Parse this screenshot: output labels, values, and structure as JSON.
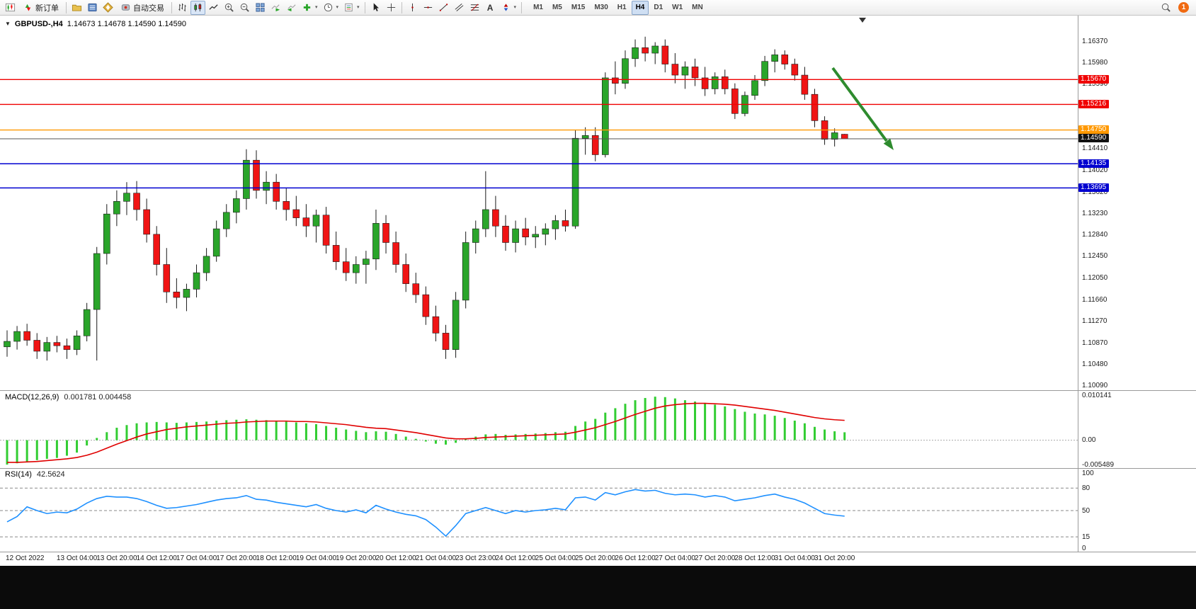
{
  "toolbar": {
    "new_order_label": "新订单",
    "autotrade_label": "自动交易",
    "timeframes": [
      "M1",
      "M5",
      "M15",
      "M30",
      "H1",
      "H4",
      "D1",
      "W1",
      "MN"
    ],
    "active_timeframe": "H4",
    "notification_count": "1"
  },
  "glyphs": {
    "collapse_triangle": "▼",
    "dropdown_caret": "▾",
    "text_tool": "A"
  },
  "colors": {
    "bull": "#2aa52a",
    "bear": "#f01414",
    "wick": "#1a1a1a",
    "macd_hist": "#32cd32",
    "macd_signal": "#e00000",
    "rsi": "#1e90ff",
    "arrow": "#2e8b2e",
    "bid_line": "#555555",
    "bid_tag": "#111111"
  },
  "chart_data": {
    "type": "candlestick",
    "symbol_title": "GBPUSD-,H4",
    "ohlc_display": "1.14673 1.14678 1.14590 1.14590",
    "price_axis_labels": [
      "1.16370",
      "1.15980",
      "1.15590",
      "1.14410",
      "1.14020",
      "1.13620",
      "1.13230",
      "1.12840",
      "1.12450",
      "1.12050",
      "1.11660",
      "1.11270",
      "1.10870",
      "1.10480",
      "1.10090"
    ],
    "hlines": [
      {
        "price": 1.1567,
        "label": "1.15670",
        "color": "#f00000"
      },
      {
        "price": 1.15216,
        "label": "1.15216",
        "color": "#f00000"
      },
      {
        "price": 1.1475,
        "label": "1.14750",
        "color": "#ff9800"
      },
      {
        "price": 1.1459,
        "label": "1.14590",
        "color": "#555555",
        "tag_color": "#111111",
        "is_bid": true
      },
      {
        "price": 1.14135,
        "label": "1.14135",
        "color": "#0000d0"
      },
      {
        "price": 1.13695,
        "label": "1.13695",
        "color": "#0000d0"
      }
    ],
    "candles": [
      [
        1.108,
        1.111,
        1.1062,
        1.109
      ],
      [
        1.109,
        1.1118,
        1.1075,
        1.1108
      ],
      [
        1.1108,
        1.1122,
        1.1082,
        1.1092
      ],
      [
        1.1092,
        1.1105,
        1.1058,
        1.1072
      ],
      [
        1.1072,
        1.1098,
        1.1055,
        1.1088
      ],
      [
        1.1088,
        1.11,
        1.107,
        1.1082
      ],
      [
        1.1082,
        1.1095,
        1.1058,
        1.1075
      ],
      [
        1.1075,
        1.111,
        1.1065,
        1.11
      ],
      [
        1.11,
        1.116,
        1.109,
        1.1148
      ],
      [
        1.1148,
        1.1262,
        1.1055,
        1.125
      ],
      [
        1.125,
        1.134,
        1.123,
        1.1322
      ],
      [
        1.1322,
        1.1365,
        1.13,
        1.1345
      ],
      [
        1.1345,
        1.138,
        1.132,
        1.136
      ],
      [
        1.136,
        1.1382,
        1.131,
        1.133
      ],
      [
        1.133,
        1.135,
        1.127,
        1.1285
      ],
      [
        1.1285,
        1.13,
        1.121,
        1.123
      ],
      [
        1.123,
        1.126,
        1.116,
        1.118
      ],
      [
        1.118,
        1.1205,
        1.115,
        1.117
      ],
      [
        1.117,
        1.1195,
        1.1145,
        1.1185
      ],
      [
        1.1185,
        1.123,
        1.117,
        1.1215
      ],
      [
        1.1215,
        1.126,
        1.12,
        1.1245
      ],
      [
        1.1245,
        1.131,
        1.1235,
        1.1295
      ],
      [
        1.1295,
        1.134,
        1.128,
        1.1325
      ],
      [
        1.1325,
        1.1365,
        1.1305,
        1.135
      ],
      [
        1.135,
        1.144,
        1.133,
        1.142
      ],
      [
        1.142,
        1.1438,
        1.135,
        1.1365
      ],
      [
        1.1365,
        1.14,
        1.134,
        1.138
      ],
      [
        1.138,
        1.1395,
        1.133,
        1.1345
      ],
      [
        1.1345,
        1.137,
        1.131,
        1.133
      ],
      [
        1.133,
        1.1355,
        1.13,
        1.1315
      ],
      [
        1.1315,
        1.134,
        1.128,
        1.13
      ],
      [
        1.13,
        1.133,
        1.127,
        1.132
      ],
      [
        1.132,
        1.1335,
        1.125,
        1.1265
      ],
      [
        1.1265,
        1.129,
        1.122,
        1.1235
      ],
      [
        1.1235,
        1.126,
        1.12,
        1.1215
      ],
      [
        1.1215,
        1.1245,
        1.1195,
        1.123
      ],
      [
        1.123,
        1.1255,
        1.1195,
        1.124
      ],
      [
        1.124,
        1.133,
        1.122,
        1.1305
      ],
      [
        1.1305,
        1.132,
        1.125,
        1.127
      ],
      [
        1.127,
        1.129,
        1.1215,
        1.123
      ],
      [
        1.123,
        1.125,
        1.118,
        1.1195
      ],
      [
        1.1195,
        1.1215,
        1.116,
        1.1175
      ],
      [
        1.1175,
        1.119,
        1.112,
        1.1135
      ],
      [
        1.1135,
        1.1155,
        1.109,
        1.1105
      ],
      [
        1.1105,
        1.112,
        1.1058,
        1.1075
      ],
      [
        1.1075,
        1.118,
        1.106,
        1.1165
      ],
      [
        1.1165,
        1.129,
        1.115,
        1.127
      ],
      [
        1.127,
        1.131,
        1.125,
        1.1295
      ],
      [
        1.1295,
        1.14,
        1.128,
        1.133
      ],
      [
        1.133,
        1.1355,
        1.128,
        1.13
      ],
      [
        1.13,
        1.132,
        1.1255,
        1.127
      ],
      [
        1.127,
        1.131,
        1.1252,
        1.1295
      ],
      [
        1.1295,
        1.1315,
        1.1265,
        1.128
      ],
      [
        1.128,
        1.13,
        1.126,
        1.1285
      ],
      [
        1.1285,
        1.1305,
        1.1265,
        1.1295
      ],
      [
        1.1295,
        1.132,
        1.1275,
        1.131
      ],
      [
        1.131,
        1.133,
        1.129,
        1.13
      ],
      [
        1.13,
        1.1475,
        1.1295,
        1.146
      ],
      [
        1.146,
        1.148,
        1.143,
        1.1465
      ],
      [
        1.1465,
        1.148,
        1.1418,
        1.143
      ],
      [
        1.143,
        1.158,
        1.1425,
        1.157
      ],
      [
        1.157,
        1.16,
        1.154,
        1.156
      ],
      [
        1.156,
        1.162,
        1.155,
        1.1605
      ],
      [
        1.1605,
        1.164,
        1.159,
        1.1625
      ],
      [
        1.1625,
        1.1645,
        1.16,
        1.1615
      ],
      [
        1.1615,
        1.1635,
        1.1595,
        1.1628
      ],
      [
        1.1628,
        1.164,
        1.158,
        1.1595
      ],
      [
        1.1595,
        1.1615,
        1.156,
        1.1575
      ],
      [
        1.1575,
        1.16,
        1.155,
        1.159
      ],
      [
        1.159,
        1.1605,
        1.1555,
        1.157
      ],
      [
        1.157,
        1.159,
        1.1537,
        1.155
      ],
      [
        1.155,
        1.158,
        1.154,
        1.1572
      ],
      [
        1.1572,
        1.1585,
        1.154,
        1.155
      ],
      [
        1.155,
        1.156,
        1.1495,
        1.1505
      ],
      [
        1.1505,
        1.1545,
        1.15,
        1.1538
      ],
      [
        1.1538,
        1.1575,
        1.153,
        1.1565
      ],
      [
        1.1565,
        1.161,
        1.1555,
        1.16
      ],
      [
        1.16,
        1.1622,
        1.158,
        1.1612
      ],
      [
        1.1612,
        1.162,
        1.1585,
        1.1595
      ],
      [
        1.1595,
        1.1605,
        1.1565,
        1.1575
      ],
      [
        1.1575,
        1.159,
        1.153,
        1.154
      ],
      [
        1.154,
        1.155,
        1.148,
        1.1492
      ],
      [
        1.1492,
        1.15,
        1.1448,
        1.1458
      ],
      [
        1.1458,
        1.1478,
        1.1445,
        1.147
      ],
      [
        1.14673,
        1.14678,
        1.1459,
        1.1459
      ]
    ],
    "macd": {
      "label": "MACD(12,26,9)",
      "values_display": "0.001781 0.004458",
      "axis_labels": [
        "0.010141",
        "0.00",
        "-0.005489"
      ],
      "scale_max": 0.010141,
      "scale_min": -0.005489,
      "histogram": [
        -0.0055,
        -0.0052,
        -0.0048,
        -0.0045,
        -0.0042,
        -0.004,
        -0.0035,
        -0.0028,
        -0.0012,
        0.0005,
        0.0018,
        0.0028,
        0.0034,
        0.0038,
        0.004,
        0.0041,
        0.004,
        0.0039,
        0.004,
        0.0041,
        0.0042,
        0.0044,
        0.0045,
        0.0046,
        0.0047,
        0.0046,
        0.0045,
        0.0044,
        0.0042,
        0.004,
        0.0038,
        0.0036,
        0.0032,
        0.0028,
        0.0024,
        0.0021,
        0.0018,
        0.002,
        0.0019,
        0.0014,
        0.0008,
        0.0003,
        -0.0003,
        -0.0008,
        -0.001,
        -0.0006,
        0.0002,
        0.0008,
        0.0013,
        0.0014,
        0.0012,
        0.0013,
        0.0014,
        0.0015,
        0.0016,
        0.0018,
        0.0019,
        0.0032,
        0.0042,
        0.0048,
        0.0062,
        0.0072,
        0.0082,
        0.009,
        0.0095,
        0.0098,
        0.0097,
        0.0094,
        0.009,
        0.0087,
        0.0084,
        0.008,
        0.0076,
        0.007,
        0.0064,
        0.006,
        0.0058,
        0.0055,
        0.005,
        0.0044,
        0.0038,
        0.003,
        0.0024,
        0.002,
        0.001781
      ],
      "signal": [
        -0.005,
        -0.005,
        -0.0049,
        -0.0048,
        -0.0046,
        -0.0044,
        -0.0042,
        -0.0039,
        -0.0034,
        -0.0027,
        -0.0018,
        -0.0009,
        -0.0001,
        0.0007,
        0.0014,
        0.0019,
        0.0024,
        0.0027,
        0.003,
        0.0032,
        0.0034,
        0.0036,
        0.0038,
        0.0039,
        0.0041,
        0.0042,
        0.0043,
        0.0043,
        0.0043,
        0.0042,
        0.0042,
        0.0041,
        0.0039,
        0.0037,
        0.0035,
        0.0032,
        0.0029,
        0.0027,
        0.0026,
        0.0023,
        0.002,
        0.0017,
        0.0013,
        0.0009,
        0.0005,
        0.0003,
        0.0003,
        0.0004,
        0.0006,
        0.0007,
        0.0008,
        0.0009,
        0.001,
        0.0011,
        0.0012,
        0.0013,
        0.0014,
        0.0018,
        0.0023,
        0.0028,
        0.0035,
        0.0042,
        0.005,
        0.0058,
        0.0065,
        0.0072,
        0.0077,
        0.008,
        0.0082,
        0.0083,
        0.0083,
        0.0082,
        0.0081,
        0.0079,
        0.0076,
        0.0073,
        0.007,
        0.0067,
        0.0063,
        0.0059,
        0.0055,
        0.0051,
        0.0048,
        0.0046,
        0.004458
      ]
    },
    "rsi": {
      "label": "RSI(14)",
      "value_display": "42.5624",
      "axis_labels": [
        "100",
        "80",
        "50",
        "15",
        "0"
      ],
      "levels": [
        80,
        50,
        15
      ],
      "values": [
        35,
        42,
        55,
        50,
        46,
        48,
        47,
        52,
        60,
        66,
        69,
        68,
        68,
        66,
        62,
        57,
        53,
        54,
        56,
        58,
        61,
        64,
        66,
        67,
        70,
        65,
        64,
        61,
        59,
        57,
        55,
        58,
        53,
        50,
        48,
        51,
        47,
        57,
        52,
        48,
        45,
        43,
        38,
        28,
        16,
        30,
        46,
        50,
        54,
        50,
        46,
        50,
        48,
        50,
        51,
        53,
        51,
        67,
        68,
        64,
        74,
        71,
        75,
        78,
        76,
        77,
        73,
        71,
        72,
        71,
        68,
        70,
        68,
        63,
        65,
        67,
        70,
        72,
        68,
        65,
        60,
        53,
        46,
        44,
        42.56
      ]
    },
    "time_labels": [
      "12 Oct 2022",
      "13 Oct 04:00",
      "13 Oct 20:00",
      "14 Oct 12:00",
      "17 Oct 04:00",
      "17 Oct 20:00",
      "18 Oct 12:00",
      "19 Oct 04:00",
      "19 Oct 20:00",
      "20 Oct 12:00",
      "21 Oct 04:00",
      "23 Oct 23:00",
      "24 Oct 12:00",
      "25 Oct 04:00",
      "25 Oct 20:00",
      "26 Oct 12:00",
      "27 Oct 04:00",
      "27 Oct 20:00",
      "28 Oct 12:00",
      "31 Oct 04:00",
      "31 Oct 20:00"
    ]
  }
}
